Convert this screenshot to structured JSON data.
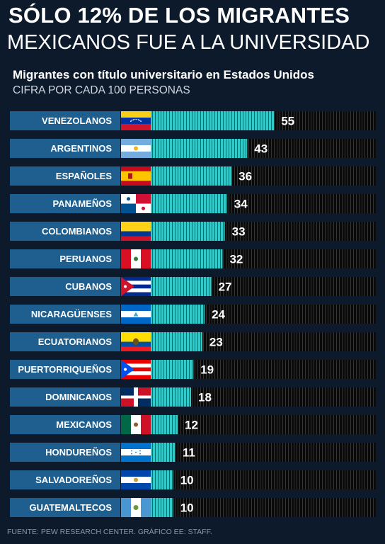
{
  "header": {
    "title_line1": "SÓLO 12% DE LOS MIGRANTES",
    "title_line2": "MEXICANOS FUE A LA UNIVERSIDAD"
  },
  "chart_data": {
    "type": "bar",
    "title": "Migrantes con título universitario en Estados Unidos",
    "subtitle": "CIFRA POR CADA 100 PERSONAS",
    "categories": [
      "VENEZOLANOS",
      "ARGENTINOS",
      "ESPAÑOLES",
      "PANAMEÑOS",
      "COLOMBIANOS",
      "PERUANOS",
      "CUBANOS",
      "NICARAGÜENSES",
      "ECUATORIANOS",
      "PUERTORRIQUEÑOS",
      "DOMINICANOS",
      "MEXICANOS",
      "HONDUREÑOS",
      "SALVADOREÑOS",
      "GUATEMALTECOS"
    ],
    "values": [
      55,
      43,
      36,
      34,
      33,
      32,
      27,
      24,
      23,
      19,
      18,
      12,
      11,
      10,
      10
    ],
    "value_labels": [
      "55",
      "43",
      "36",
      "34",
      "33",
      "32",
      "27",
      "24",
      "23",
      "19",
      "18",
      "12",
      "11",
      "10",
      "10"
    ],
    "flags": [
      "venezuela-flag-icon",
      "argentina-flag-icon",
      "spain-flag-icon",
      "panama-flag-icon",
      "colombia-flag-icon",
      "peru-flag-icon",
      "cuba-flag-icon",
      "nicaragua-flag-icon",
      "ecuador-flag-icon",
      "puerto-rico-flag-icon",
      "dominican-republic-flag-icon",
      "mexico-flag-icon",
      "honduras-flag-icon",
      "el-salvador-flag-icon",
      "guatemala-flag-icon"
    ],
    "xlim": [
      0,
      100
    ],
    "orientation": "horizontal",
    "grid": false,
    "colors": {
      "bar": "#33c9c9",
      "track": "#101010",
      "label_bg": "#1e5f8f",
      "background": "#0d1a2b"
    }
  },
  "footer": {
    "source": "FUENTE: PEW RESEARCH CENTER. GRÁFICO EE: STAFF."
  }
}
